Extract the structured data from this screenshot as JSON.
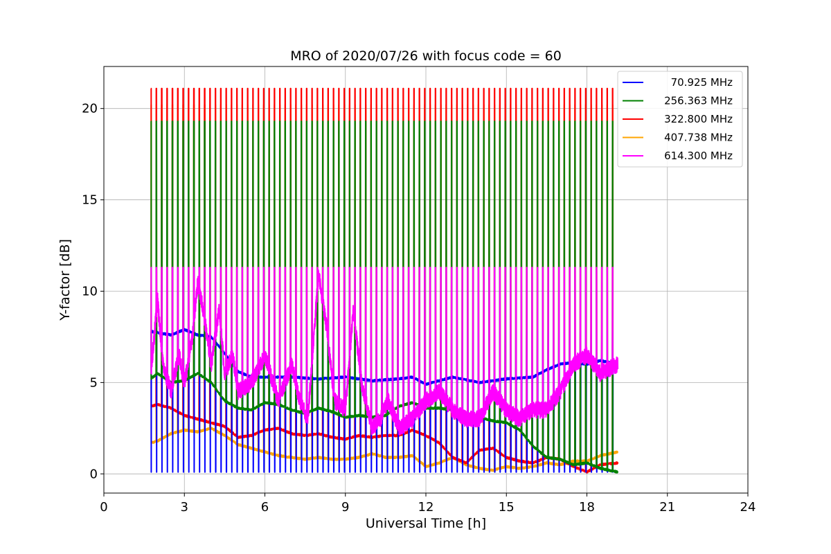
{
  "chart_data": {
    "type": "line",
    "title": "MRO of 2020/07/26 with focus code = 60",
    "xlabel": "Universal Time [h]",
    "ylabel": "Y-factor [dB]",
    "xlim": [
      0,
      24
    ],
    "ylim": [
      -1.05,
      22.3
    ],
    "xticks": [
      0,
      3,
      6,
      9,
      12,
      15,
      18,
      21,
      24
    ],
    "yticks": [
      0,
      5,
      10,
      15,
      20
    ],
    "grid": true,
    "legend_position": "top-right",
    "x_start": 1.75,
    "x_end": 19.15,
    "calibration_spikes": {
      "period_h": 0.2,
      "peaks": {
        "70.925 MHz": 7.8,
        "256.363 MHz": 19.3,
        "322.800 MHz": 21.1,
        "407.738 MHz": 20.2,
        "614.300 MHz": 11.3
      }
    },
    "series": [
      {
        "name": "70.925 MHz",
        "color": "#0000ff",
        "x": [
          1.75,
          2.5,
          3.0,
          3.5,
          4.0,
          4.5,
          5.0,
          5.5,
          6.0,
          7.0,
          8.0,
          9.0,
          10.0,
          11.0,
          11.5,
          12.0,
          13.0,
          14.0,
          15.0,
          16.0,
          16.5,
          17.0,
          17.5,
          18.0,
          18.5,
          19.15
        ],
        "values": [
          7.8,
          7.6,
          7.9,
          7.6,
          7.5,
          6.6,
          5.6,
          5.3,
          5.3,
          5.3,
          5.2,
          5.3,
          5.1,
          5.2,
          5.3,
          4.9,
          5.3,
          5.0,
          5.2,
          5.3,
          5.7,
          6.0,
          6.1,
          6.0,
          6.2,
          6.0
        ]
      },
      {
        "name": "256.363 MHz",
        "color": "#008000",
        "x": [
          1.75,
          2.0,
          2.5,
          3.0,
          3.5,
          4.0,
          4.5,
          5.0,
          5.5,
          6.0,
          6.5,
          7.0,
          7.5,
          8.0,
          8.5,
          9.0,
          9.5,
          10.0,
          10.5,
          11.0,
          11.5,
          12.0,
          12.5,
          13.0,
          13.5,
          14.0,
          14.5,
          15.0,
          15.5,
          16.0,
          16.5,
          17.0,
          17.5,
          18.0,
          18.5,
          19.15
        ],
        "values": [
          5.2,
          5.5,
          5.0,
          5.1,
          5.5,
          5.0,
          4.0,
          3.6,
          3.5,
          3.9,
          3.8,
          3.5,
          3.3,
          3.6,
          3.4,
          3.1,
          3.2,
          3.1,
          3.2,
          3.7,
          3.9,
          3.6,
          3.6,
          3.5,
          3.3,
          3.1,
          2.9,
          2.8,
          2.4,
          1.5,
          0.9,
          0.8,
          0.5,
          0.6,
          0.3,
          0.1
        ]
      },
      {
        "name": "322.800 MHz",
        "color": "#ff0000",
        "x": [
          1.75,
          2.0,
          2.5,
          3.0,
          3.5,
          4.0,
          4.5,
          5.0,
          5.5,
          6.0,
          6.5,
          7.0,
          7.5,
          8.0,
          8.5,
          9.0,
          9.5,
          10.0,
          10.5,
          11.0,
          11.5,
          12.0,
          12.5,
          13.0,
          13.5,
          14.0,
          14.5,
          15.0,
          15.5,
          16.0,
          16.5,
          17.0,
          17.5,
          18.0,
          18.5,
          19.15
        ],
        "values": [
          3.7,
          3.8,
          3.6,
          3.2,
          3.0,
          2.8,
          2.6,
          2.0,
          2.1,
          2.4,
          2.5,
          2.2,
          2.1,
          2.2,
          2.0,
          1.9,
          2.1,
          2.0,
          2.1,
          2.1,
          2.4,
          2.1,
          1.7,
          0.9,
          0.6,
          1.3,
          1.4,
          0.9,
          0.7,
          0.6,
          0.9,
          0.8,
          0.4,
          0.1,
          0.5,
          0.6
        ]
      },
      {
        "name": "407.738 MHz",
        "color": "#ffa500",
        "x": [
          1.75,
          2.0,
          2.5,
          3.0,
          3.5,
          4.0,
          4.5,
          5.0,
          5.5,
          6.0,
          6.5,
          7.0,
          7.5,
          8.0,
          8.5,
          9.0,
          9.5,
          10.0,
          10.5,
          11.0,
          11.5,
          12.0,
          12.5,
          13.0,
          13.5,
          14.0,
          14.5,
          15.0,
          15.5,
          16.0,
          16.5,
          17.0,
          17.5,
          18.0,
          18.5,
          19.15
        ],
        "values": [
          1.7,
          1.8,
          2.2,
          2.4,
          2.3,
          2.5,
          2.1,
          1.6,
          1.4,
          1.2,
          1.0,
          0.9,
          0.8,
          0.9,
          0.8,
          0.8,
          0.9,
          1.1,
          0.9,
          0.9,
          1.0,
          0.4,
          0.6,
          0.9,
          0.5,
          0.3,
          0.2,
          0.4,
          0.3,
          0.4,
          0.6,
          0.5,
          0.7,
          0.7,
          1.0,
          1.2
        ]
      },
      {
        "name": "614.300 MHz",
        "color": "#ff00ff",
        "x": [
          1.75,
          2.0,
          2.2,
          2.5,
          2.8,
          3.0,
          3.3,
          3.5,
          3.7,
          4.0,
          4.3,
          4.5,
          4.8,
          5.0,
          5.5,
          6.0,
          6.5,
          7.0,
          7.3,
          7.6,
          8.0,
          8.3,
          8.6,
          9.0,
          9.3,
          9.6,
          10.0,
          10.3,
          10.6,
          11.0,
          11.5,
          12.0,
          12.5,
          13.0,
          13.5,
          14.0,
          14.5,
          15.0,
          15.5,
          16.0,
          16.5,
          17.0,
          17.5,
          18.0,
          18.5,
          19.15
        ],
        "values": [
          5.5,
          9.5,
          6.0,
          4.5,
          6.5,
          5.0,
          7.5,
          10.5,
          9.0,
          6.0,
          9.0,
          5.5,
          6.5,
          4.5,
          5.0,
          6.5,
          4.0,
          6.0,
          4.0,
          3.0,
          11.0,
          8.0,
          4.0,
          3.5,
          9.0,
          5.0,
          2.5,
          3.0,
          4.0,
          2.5,
          3.0,
          4.0,
          4.5,
          3.5,
          3.0,
          3.0,
          4.5,
          3.5,
          3.0,
          3.5,
          3.5,
          4.5,
          6.0,
          6.5,
          5.5,
          6.0
        ]
      }
    ]
  }
}
